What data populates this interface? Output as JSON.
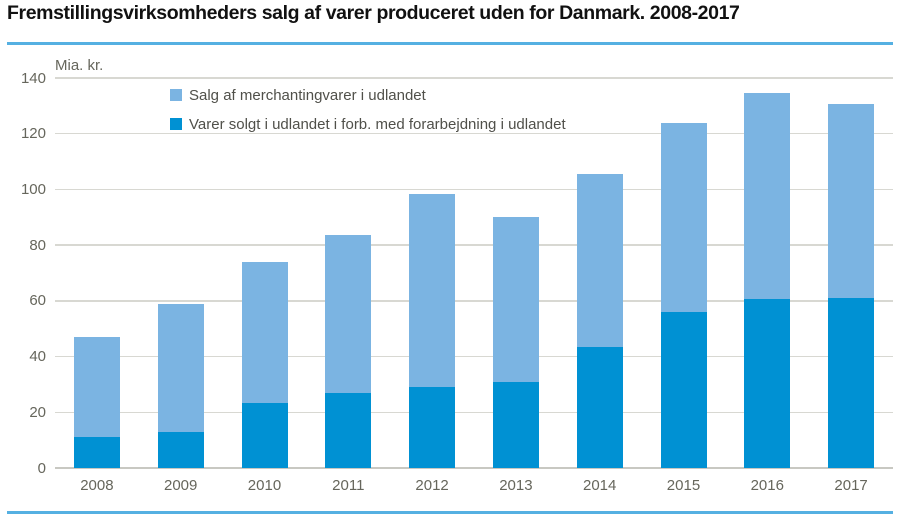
{
  "title": "Fremstillingsvirksomheders salg af varer produceret uden for Danmark. 2008-2017",
  "colors": {
    "accent_rule": "#55b0e2",
    "light_series": "#7bb4e2",
    "dark_series": "#0091d3",
    "gridline": "#d8d8d2",
    "zero_line": "#c8c8c2",
    "axis_text": "#66665c",
    "legend_text": "#50504a",
    "title_text": "#111111"
  },
  "chart_data": {
    "type": "bar",
    "stacked": true,
    "title": "Fremstillingsvirksomheders salg af varer produceret uden for Danmark. 2008-2017",
    "unit_label": "Mia. kr.",
    "xlabel": "",
    "ylabel": "Mia. kr.",
    "categories": [
      "2008",
      "2009",
      "2010",
      "2011",
      "2012",
      "2013",
      "2014",
      "2015",
      "2016",
      "2017"
    ],
    "series": [
      {
        "name": "Varer solgt i udlandet i forb. med forarbejdning i udlandet",
        "color_key": "dark_series",
        "values": [
          11,
          13,
          23.5,
          27,
          29,
          31,
          43.5,
          56,
          60.5,
          61
        ]
      },
      {
        "name": "Salg af merchantingvarer i udlandet",
        "color_key": "light_series",
        "values": [
          36,
          46,
          50.5,
          56.5,
          69.5,
          59,
          62,
          68,
          74,
          69.5
        ]
      }
    ],
    "totals": [
      47,
      59,
      74,
      83.5,
      98.5,
      90,
      105.5,
      124,
      134.5,
      130.5
    ],
    "ylim": [
      0,
      140
    ],
    "yticks": [
      0,
      20,
      40,
      60,
      80,
      100,
      120,
      140
    ],
    "grid": true,
    "legend_position": "top-left-inside",
    "legend_series_order": [
      1,
      0
    ]
  }
}
